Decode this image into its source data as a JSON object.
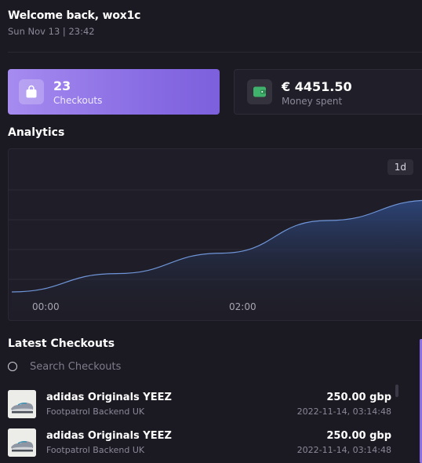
{
  "header": {
    "welcome": "Welcome back, wox1c",
    "datetime": "Sun Nov 13 | 23:42"
  },
  "stats": {
    "checkouts": {
      "value": "23",
      "label": "Checkouts",
      "icon": "shopping-bag-icon",
      "color": "#9a7ff0"
    },
    "spent": {
      "value": "€ 4451.50",
      "label": "Money spent",
      "icon": "wallet-icon",
      "color": "#3fb36b"
    }
  },
  "analytics": {
    "title": "Analytics",
    "range": "1d",
    "x_ticks": [
      "00:00",
      "02:00"
    ]
  },
  "chart_data": {
    "type": "area",
    "x": [
      "00:00",
      "",
      "02:00",
      "",
      ""
    ],
    "values": [
      0,
      18,
      38,
      70,
      90
    ],
    "title": "",
    "xlabel": "",
    "ylabel": "",
    "grid": true,
    "line_color": "#6f95d8"
  },
  "latest": {
    "title": "Latest Checkouts",
    "search_placeholder": "Search Checkouts",
    "items": [
      {
        "name": "adidas Originals YEEZ",
        "store": "Footpatrol Backend UK",
        "price": "250.00 gbp",
        "date": "2022-11-14, 03:14:48"
      },
      {
        "name": "adidas Originals YEEZ",
        "store": "Footpatrol Backend UK",
        "price": "250.00 gbp",
        "date": "2022-11-14, 03:14:48"
      }
    ]
  }
}
